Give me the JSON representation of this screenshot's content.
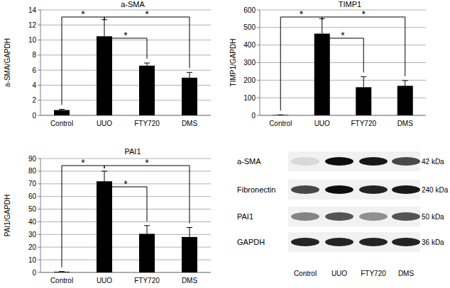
{
  "chart_data": [
    {
      "type": "bar",
      "title": "a-SMA",
      "y_label": "a-SMA/GAPDH",
      "categories": [
        "Control",
        "UUO",
        "FTY720",
        "DMS"
      ],
      "values": [
        0.7,
        10.5,
        6.6,
        5.0
      ],
      "errors": [
        0.1,
        2.2,
        0.35,
        0.7
      ],
      "color": "#000000",
      "ylim": [
        0,
        14
      ],
      "yticks": [
        0,
        2,
        4,
        6,
        8,
        10,
        12,
        14
      ],
      "grid": true,
      "annotations": [
        {
          "label": "*",
          "from": 0,
          "to": 1
        },
        {
          "label": "*",
          "from": 1,
          "to": 3
        },
        {
          "label": "*",
          "from": 1,
          "to": 2
        }
      ]
    },
    {
      "type": "bar",
      "title": "TIMP1",
      "y_label": "TIMP1/GAPDH",
      "categories": [
        "Control",
        "UUO",
        "FTY720",
        "DMS"
      ],
      "values": [
        2,
        465,
        160,
        168
      ],
      "errors": [
        1,
        85,
        60,
        30
      ],
      "color": "#000000",
      "ylim": [
        0,
        600
      ],
      "yticks": [
        0,
        100,
        200,
        300,
        400,
        500,
        600
      ],
      "grid": true,
      "annotations": [
        {
          "label": "*",
          "from": 0,
          "to": 1
        },
        {
          "label": "*",
          "from": 1,
          "to": 3
        },
        {
          "label": "*",
          "from": 1,
          "to": 2
        }
      ]
    },
    {
      "type": "bar",
      "title": "PAI1",
      "y_label": "PAI1/GAPDH",
      "categories": [
        "Control",
        "UUO",
        "FTY720",
        "DMS"
      ],
      "values": [
        0.5,
        72,
        30.5,
        28
      ],
      "errors": [
        0.2,
        8,
        6.5,
        7.5
      ],
      "color": "#000000",
      "ylim": [
        0,
        90
      ],
      "yticks": [
        0,
        10,
        20,
        30,
        40,
        50,
        60,
        70,
        80,
        90
      ],
      "grid": true,
      "annotations": [
        {
          "label": "*",
          "from": 0,
          "to": 1
        },
        {
          "label": "*",
          "from": 1,
          "to": 3
        },
        {
          "label": "*",
          "from": 1,
          "to": 2
        }
      ]
    }
  ],
  "blot": {
    "lanes": [
      "Control",
      "UUO",
      "FTY720",
      "DMS"
    ],
    "rows": [
      {
        "label": "a-SMA",
        "size": "42 kDa",
        "intensity": [
          0.1,
          0.95,
          0.9,
          0.7
        ]
      },
      {
        "label": "Fibronectin",
        "size": "240 kDa",
        "intensity": [
          0.7,
          0.95,
          0.85,
          0.9
        ]
      },
      {
        "label": "PAI1",
        "size": "50 kDa",
        "intensity": [
          0.45,
          0.65,
          0.4,
          0.65
        ]
      },
      {
        "label": "GAPDH",
        "size": "36 kDa",
        "intensity": [
          0.85,
          0.85,
          0.85,
          0.85
        ]
      }
    ]
  }
}
